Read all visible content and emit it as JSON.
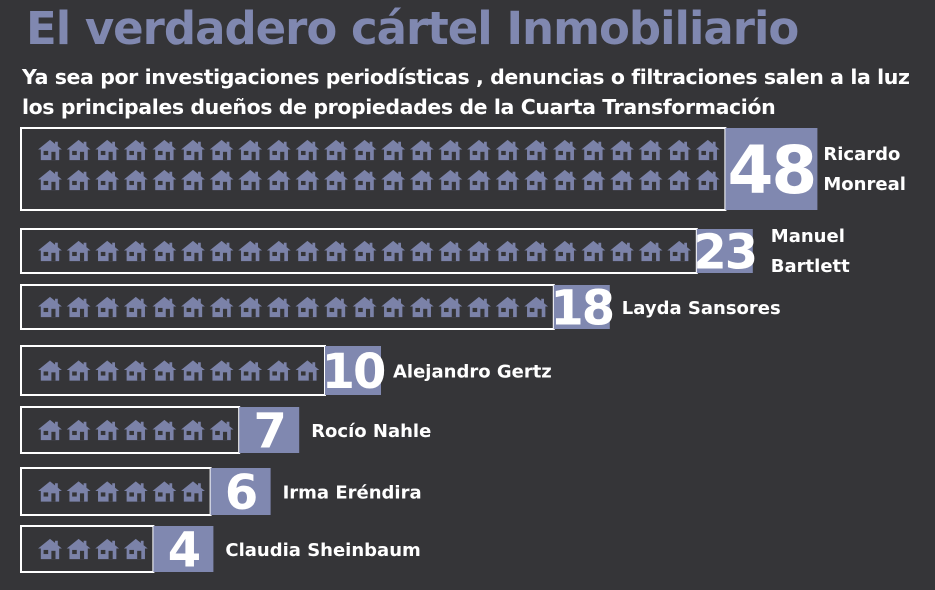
{
  "title": "El verdadero cártel Inmobiliario",
  "subtitle": "Ya sea por investigaciones periodísticas , denuncias o filtraciones salen a la luz los principales dueños de propiedades de la Cuarta Transformación",
  "colors": {
    "background": "#353538",
    "accent": "#8088b0",
    "house": "#7b82a8",
    "border": "#ffffff",
    "text": "#ffffff"
  },
  "icon": "house-icon",
  "chart_data": {
    "type": "bar",
    "orientation": "horizontal",
    "title": "El verdadero cártel Inmobiliario",
    "subtitle": "Ya sea por investigaciones periodísticas , denuncias o filtraciones salen a la luz los principales dueños de propiedades de la Cuarta Transformación",
    "categories": [
      "Ricardo Monreal",
      "Manuel Bartlett",
      "Layda Sansores",
      "Alejandro Gertz",
      "Rocío Nahle",
      "Irma Eréndira",
      "Claudia Sheinbaum"
    ],
    "label_lines": [
      [
        "Ricardo",
        "Monreal"
      ],
      [
        "Manuel",
        "Bartlett"
      ],
      [
        "Layda Sansores"
      ],
      [
        "Alejandro Gertz"
      ],
      [
        "Rocío Nahle"
      ],
      [
        "Irma Eréndira"
      ],
      [
        "Claudia Sheinbaum"
      ]
    ],
    "values": [
      48,
      23,
      18,
      10,
      7,
      6,
      4
    ],
    "value_labels": [
      "48",
      "23",
      "18",
      "10",
      "7",
      "6",
      "4"
    ]
  }
}
